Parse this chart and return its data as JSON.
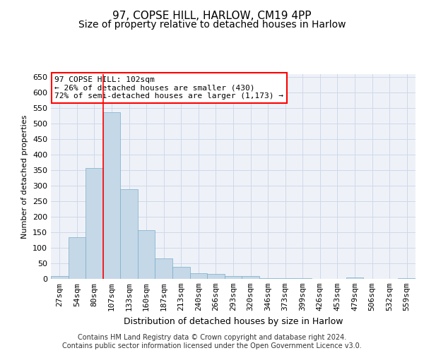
{
  "title": "97, COPSE HILL, HARLOW, CM19 4PP",
  "subtitle": "Size of property relative to detached houses in Harlow",
  "xlabel": "Distribution of detached houses by size in Harlow",
  "ylabel": "Number of detached properties",
  "categories": [
    "27sqm",
    "54sqm",
    "80sqm",
    "107sqm",
    "133sqm",
    "160sqm",
    "187sqm",
    "213sqm",
    "240sqm",
    "266sqm",
    "293sqm",
    "320sqm",
    "346sqm",
    "373sqm",
    "399sqm",
    "426sqm",
    "453sqm",
    "479sqm",
    "506sqm",
    "532sqm",
    "559sqm"
  ],
  "values": [
    10,
    135,
    358,
    537,
    290,
    157,
    67,
    38,
    18,
    15,
    10,
    8,
    3,
    2,
    2,
    1,
    1,
    4,
    1,
    1,
    3
  ],
  "bar_color": "#c5d8e8",
  "bar_edge_color": "#7aacc8",
  "highlight_line_index": 3,
  "highlight_line_color": "red",
  "annotation_text": "97 COPSE HILL: 102sqm\n← 26% of detached houses are smaller (430)\n72% of semi-detached houses are larger (1,173) →",
  "annotation_box_color": "white",
  "annotation_box_edge_color": "red",
  "ylim": [
    0,
    660
  ],
  "yticks": [
    0,
    50,
    100,
    150,
    200,
    250,
    300,
    350,
    400,
    450,
    500,
    550,
    600,
    650
  ],
  "grid_color": "#d0d8e8",
  "background_color": "#eef2f8",
  "footer": "Contains HM Land Registry data © Crown copyright and database right 2024.\nContains public sector information licensed under the Open Government Licence v3.0.",
  "title_fontsize": 11,
  "subtitle_fontsize": 10,
  "footer_fontsize": 7
}
